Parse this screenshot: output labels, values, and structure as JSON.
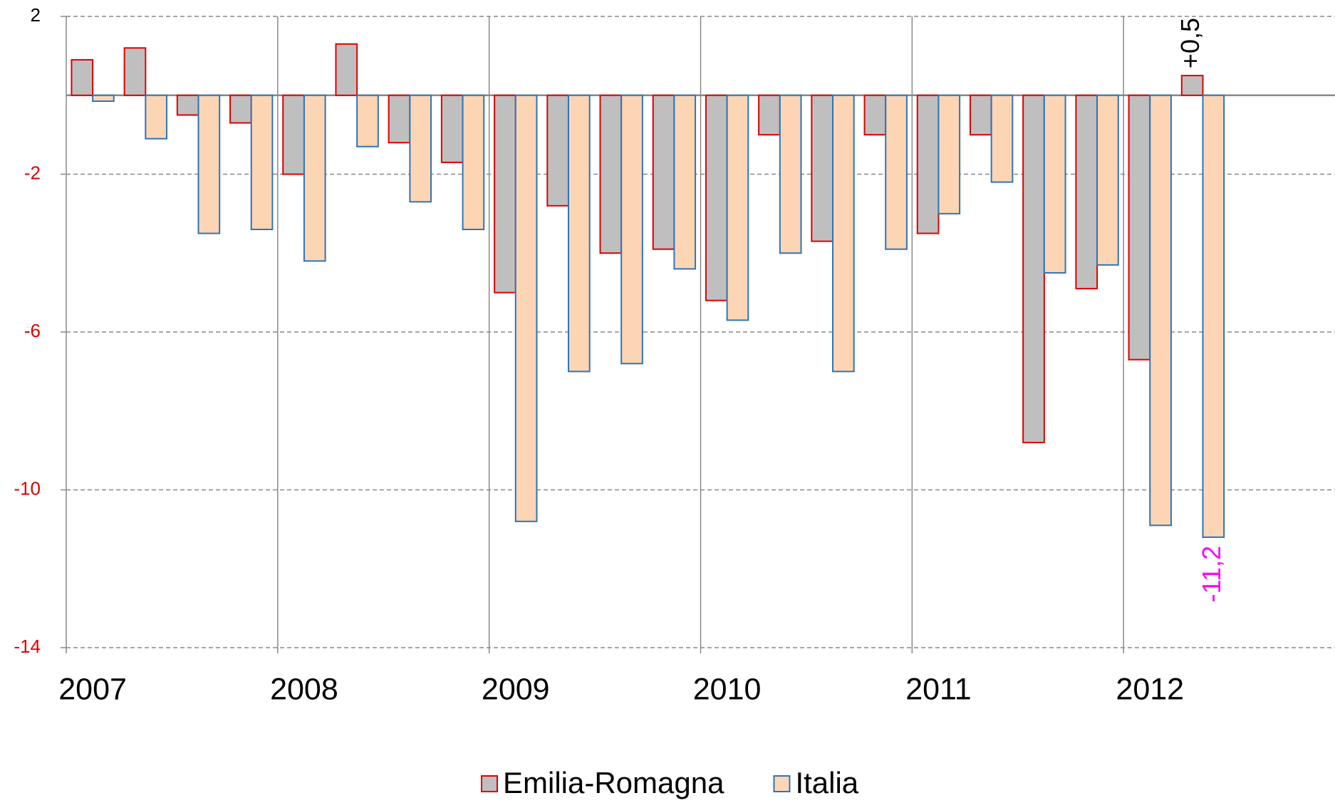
{
  "chart_data": {
    "type": "bar",
    "categories": [
      "2007",
      null,
      null,
      null,
      "2008",
      null,
      null,
      null,
      "2009",
      null,
      null,
      null,
      "2010",
      null,
      null,
      null,
      "2011",
      null,
      null,
      null,
      "2012",
      null,
      null,
      null
    ],
    "series": [
      {
        "name": "Emilia-Romagna",
        "color": "#bfbfbf",
        "edge_color": "#e00000",
        "value_label_color": "#000000",
        "values": [
          0.9,
          1.2,
          -0.5,
          -0.7,
          -2.0,
          1.3,
          -1.2,
          -1.7,
          -5.0,
          -2.8,
          -4.0,
          -3.9,
          -5.2,
          -1.0,
          -3.7,
          -1.0,
          -3.5,
          -1.0,
          -8.8,
          -4.9,
          -6.7,
          0.5,
          null,
          null
        ],
        "value_labels": [
          null,
          null,
          null,
          null,
          null,
          null,
          null,
          null,
          null,
          null,
          null,
          null,
          null,
          null,
          null,
          null,
          null,
          null,
          null,
          null,
          null,
          "+0,5",
          null,
          null
        ]
      },
      {
        "name": "Italia",
        "color": "#fcd5b5",
        "edge_color": "#2e75b6",
        "value_label_color": "#ff00ff",
        "values": [
          -0.15,
          -1.1,
          -3.5,
          -3.4,
          -4.2,
          -1.3,
          -2.7,
          -3.4,
          -10.8,
          -7.0,
          -6.8,
          -4.4,
          -5.7,
          -4.0,
          -7.0,
          -3.9,
          -3.0,
          -2.2,
          -4.5,
          -4.3,
          -10.9,
          -11.2,
          null,
          null
        ],
        "value_labels": [
          null,
          null,
          null,
          null,
          null,
          null,
          null,
          null,
          null,
          null,
          null,
          null,
          null,
          null,
          null,
          null,
          null,
          null,
          null,
          null,
          null,
          "-11,2",
          null,
          null
        ]
      }
    ],
    "ylim": [
      -14,
      2
    ],
    "yticks": [
      2,
      -2,
      -6,
      -10,
      -14
    ],
    "ytick_label_colors": [
      "#000000",
      "#e00000",
      "#e00000",
      "#e00000",
      "#e00000"
    ],
    "grid": true,
    "legend": "bottom"
  }
}
